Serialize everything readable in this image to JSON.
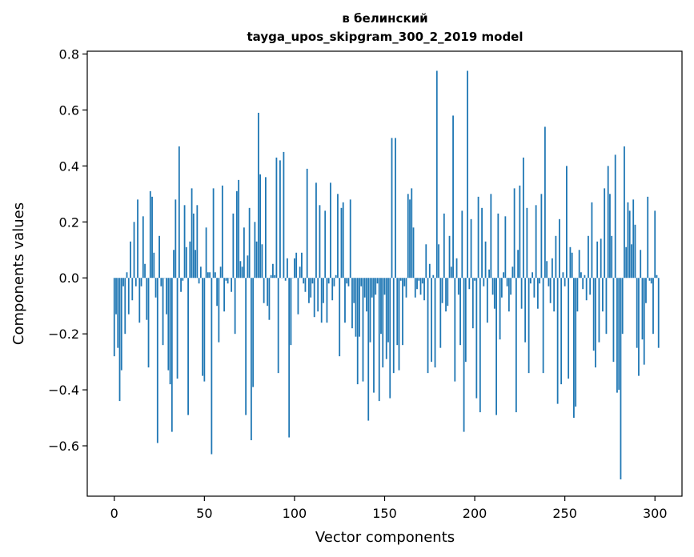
{
  "chart_data": {
    "type": "bar",
    "title_line1": "в белинский",
    "title_line2": "tayga_upos_skipgram_300_2_2019 model",
    "xlabel": "Vector components",
    "ylabel": "Components values",
    "xlim": [
      -15,
      315
    ],
    "ylim": [
      -0.78,
      0.81
    ],
    "xticks": [
      0,
      50,
      100,
      150,
      200,
      250,
      300
    ],
    "yticks": [
      -0.6,
      -0.4,
      -0.2,
      0.0,
      0.2,
      0.4,
      0.6,
      0.8
    ],
    "xtick_labels": [
      "0",
      "50",
      "100",
      "150",
      "200",
      "250",
      "300"
    ],
    "ytick_labels": [
      "−0.6",
      "−0.4",
      "−0.2",
      "0.0",
      "0.2",
      "0.4",
      "0.6",
      "0.8"
    ],
    "bar_color": "#1f77b4",
    "values": [
      -0.28,
      -0.13,
      -0.25,
      -0.44,
      -0.33,
      -0.03,
      -0.2,
      0.02,
      -0.13,
      0.13,
      -0.08,
      0.2,
      -0.03,
      0.28,
      -0.16,
      -0.03,
      0.22,
      0.05,
      -0.15,
      -0.32,
      0.31,
      0.29,
      0.09,
      -0.07,
      -0.59,
      0.15,
      -0.03,
      -0.24,
      0.0,
      -0.13,
      -0.33,
      -0.38,
      -0.55,
      0.1,
      0.28,
      -0.36,
      0.47,
      -0.05,
      -0.01,
      0.26,
      0.11,
      -0.49,
      0.13,
      0.32,
      0.23,
      0.1,
      0.26,
      -0.02,
      0.04,
      -0.35,
      -0.37,
      0.18,
      0.02,
      0.02,
      -0.63,
      0.32,
      0.02,
      -0.1,
      -0.23,
      0.04,
      0.33,
      -0.12,
      -0.01,
      -0.02,
      0.0,
      -0.05,
      0.23,
      -0.2,
      0.31,
      0.35,
      0.06,
      0.04,
      0.18,
      -0.49,
      0.08,
      0.25,
      -0.58,
      -0.39,
      0.2,
      0.13,
      0.59,
      0.37,
      0.12,
      -0.09,
      0.36,
      -0.1,
      -0.15,
      0.01,
      0.05,
      0.01,
      0.43,
      -0.34,
      0.42,
      0.0,
      0.45,
      -0.01,
      0.07,
      -0.57,
      -0.24,
      0.0,
      0.07,
      0.09,
      -0.13,
      0.04,
      0.09,
      -0.02,
      -0.05,
      0.39,
      -0.09,
      -0.07,
      -0.02,
      -0.14,
      0.34,
      -0.12,
      0.26,
      -0.16,
      -0.09,
      0.24,
      -0.16,
      -0.02,
      0.34,
      -0.08,
      -0.03,
      0.01,
      0.3,
      -0.28,
      0.25,
      0.27,
      -0.16,
      -0.02,
      -0.03,
      0.28,
      -0.18,
      -0.09,
      -0.21,
      -0.38,
      -0.21,
      -0.03,
      -0.37,
      -0.07,
      -0.12,
      -0.51,
      -0.23,
      -0.07,
      -0.41,
      -0.06,
      -0.02,
      -0.44,
      -0.2,
      -0.32,
      -0.06,
      -0.29,
      -0.23,
      -0.43,
      0.5,
      -0.34,
      0.5,
      -0.24,
      -0.33,
      -0.01,
      -0.24,
      -0.03,
      -0.07,
      0.3,
      0.28,
      0.32,
      0.18,
      -0.07,
      -0.04,
      -0.01,
      -0.06,
      -0.02,
      -0.08,
      0.12,
      -0.34,
      0.05,
      -0.3,
      0.01,
      -0.32,
      0.74,
      0.12,
      -0.25,
      -0.09,
      0.23,
      -0.12,
      -0.1,
      0.15,
      0.04,
      0.58,
      -0.37,
      0.07,
      -0.06,
      -0.24,
      0.24,
      -0.55,
      -0.3,
      0.74,
      -0.04,
      0.21,
      -0.18,
      -0.01,
      -0.43,
      0.29,
      -0.48,
      0.25,
      -0.03,
      0.13,
      -0.16,
      0.03,
      0.3,
      -0.06,
      -0.11,
      -0.49,
      0.23,
      -0.22,
      -0.07,
      0.02,
      0.22,
      -0.03,
      -0.12,
      -0.06,
      0.04,
      0.32,
      -0.48,
      0.1,
      0.33,
      -0.11,
      0.43,
      -0.23,
      0.25,
      -0.34,
      -0.02,
      0.02,
      -0.07,
      0.26,
      -0.11,
      -0.02,
      0.3,
      -0.34,
      0.54,
      0.06,
      -0.03,
      -0.09,
      0.07,
      -0.12,
      0.15,
      -0.45,
      0.21,
      -0.38,
      0.02,
      -0.03,
      0.4,
      -0.36,
      0.11,
      0.09,
      -0.5,
      -0.46,
      -0.12,
      0.1,
      0.02,
      -0.04,
      0.01,
      -0.08,
      0.15,
      -0.06,
      0.27,
      -0.26,
      -0.32,
      0.13,
      -0.23,
      0.14,
      -0.12,
      0.32,
      -0.2,
      0.4,
      0.3,
      0.15,
      -0.3,
      0.44,
      -0.41,
      -0.4,
      -0.72,
      -0.2,
      0.47,
      0.11,
      0.27,
      0.24,
      0.12,
      0.28,
      0.19,
      -0.25,
      -0.35,
      0.1,
      -0.22,
      -0.31,
      -0.09,
      0.29,
      -0.01,
      -0.02,
      -0.2,
      0.24,
      0.01,
      -0.25
    ]
  }
}
